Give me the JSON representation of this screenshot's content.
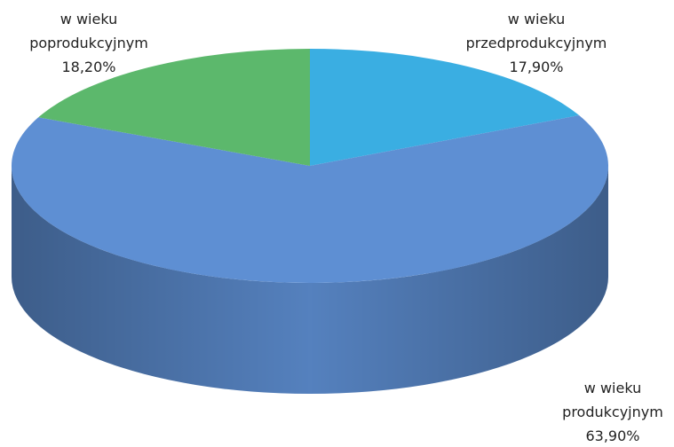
{
  "chart_data": {
    "type": "pie",
    "categories": [
      "w wieku przedprodukcyjnym",
      "w wieku produkcyjnym",
      "w wieku poprodukcyjnym"
    ],
    "values": [
      17.9,
      63.9,
      18.2
    ],
    "value_labels": [
      "17,90%",
      "63,90%",
      "18,20%"
    ],
    "colors": [
      "#3aaee2",
      "#5e8fd3",
      "#5cb86c"
    ]
  }
}
